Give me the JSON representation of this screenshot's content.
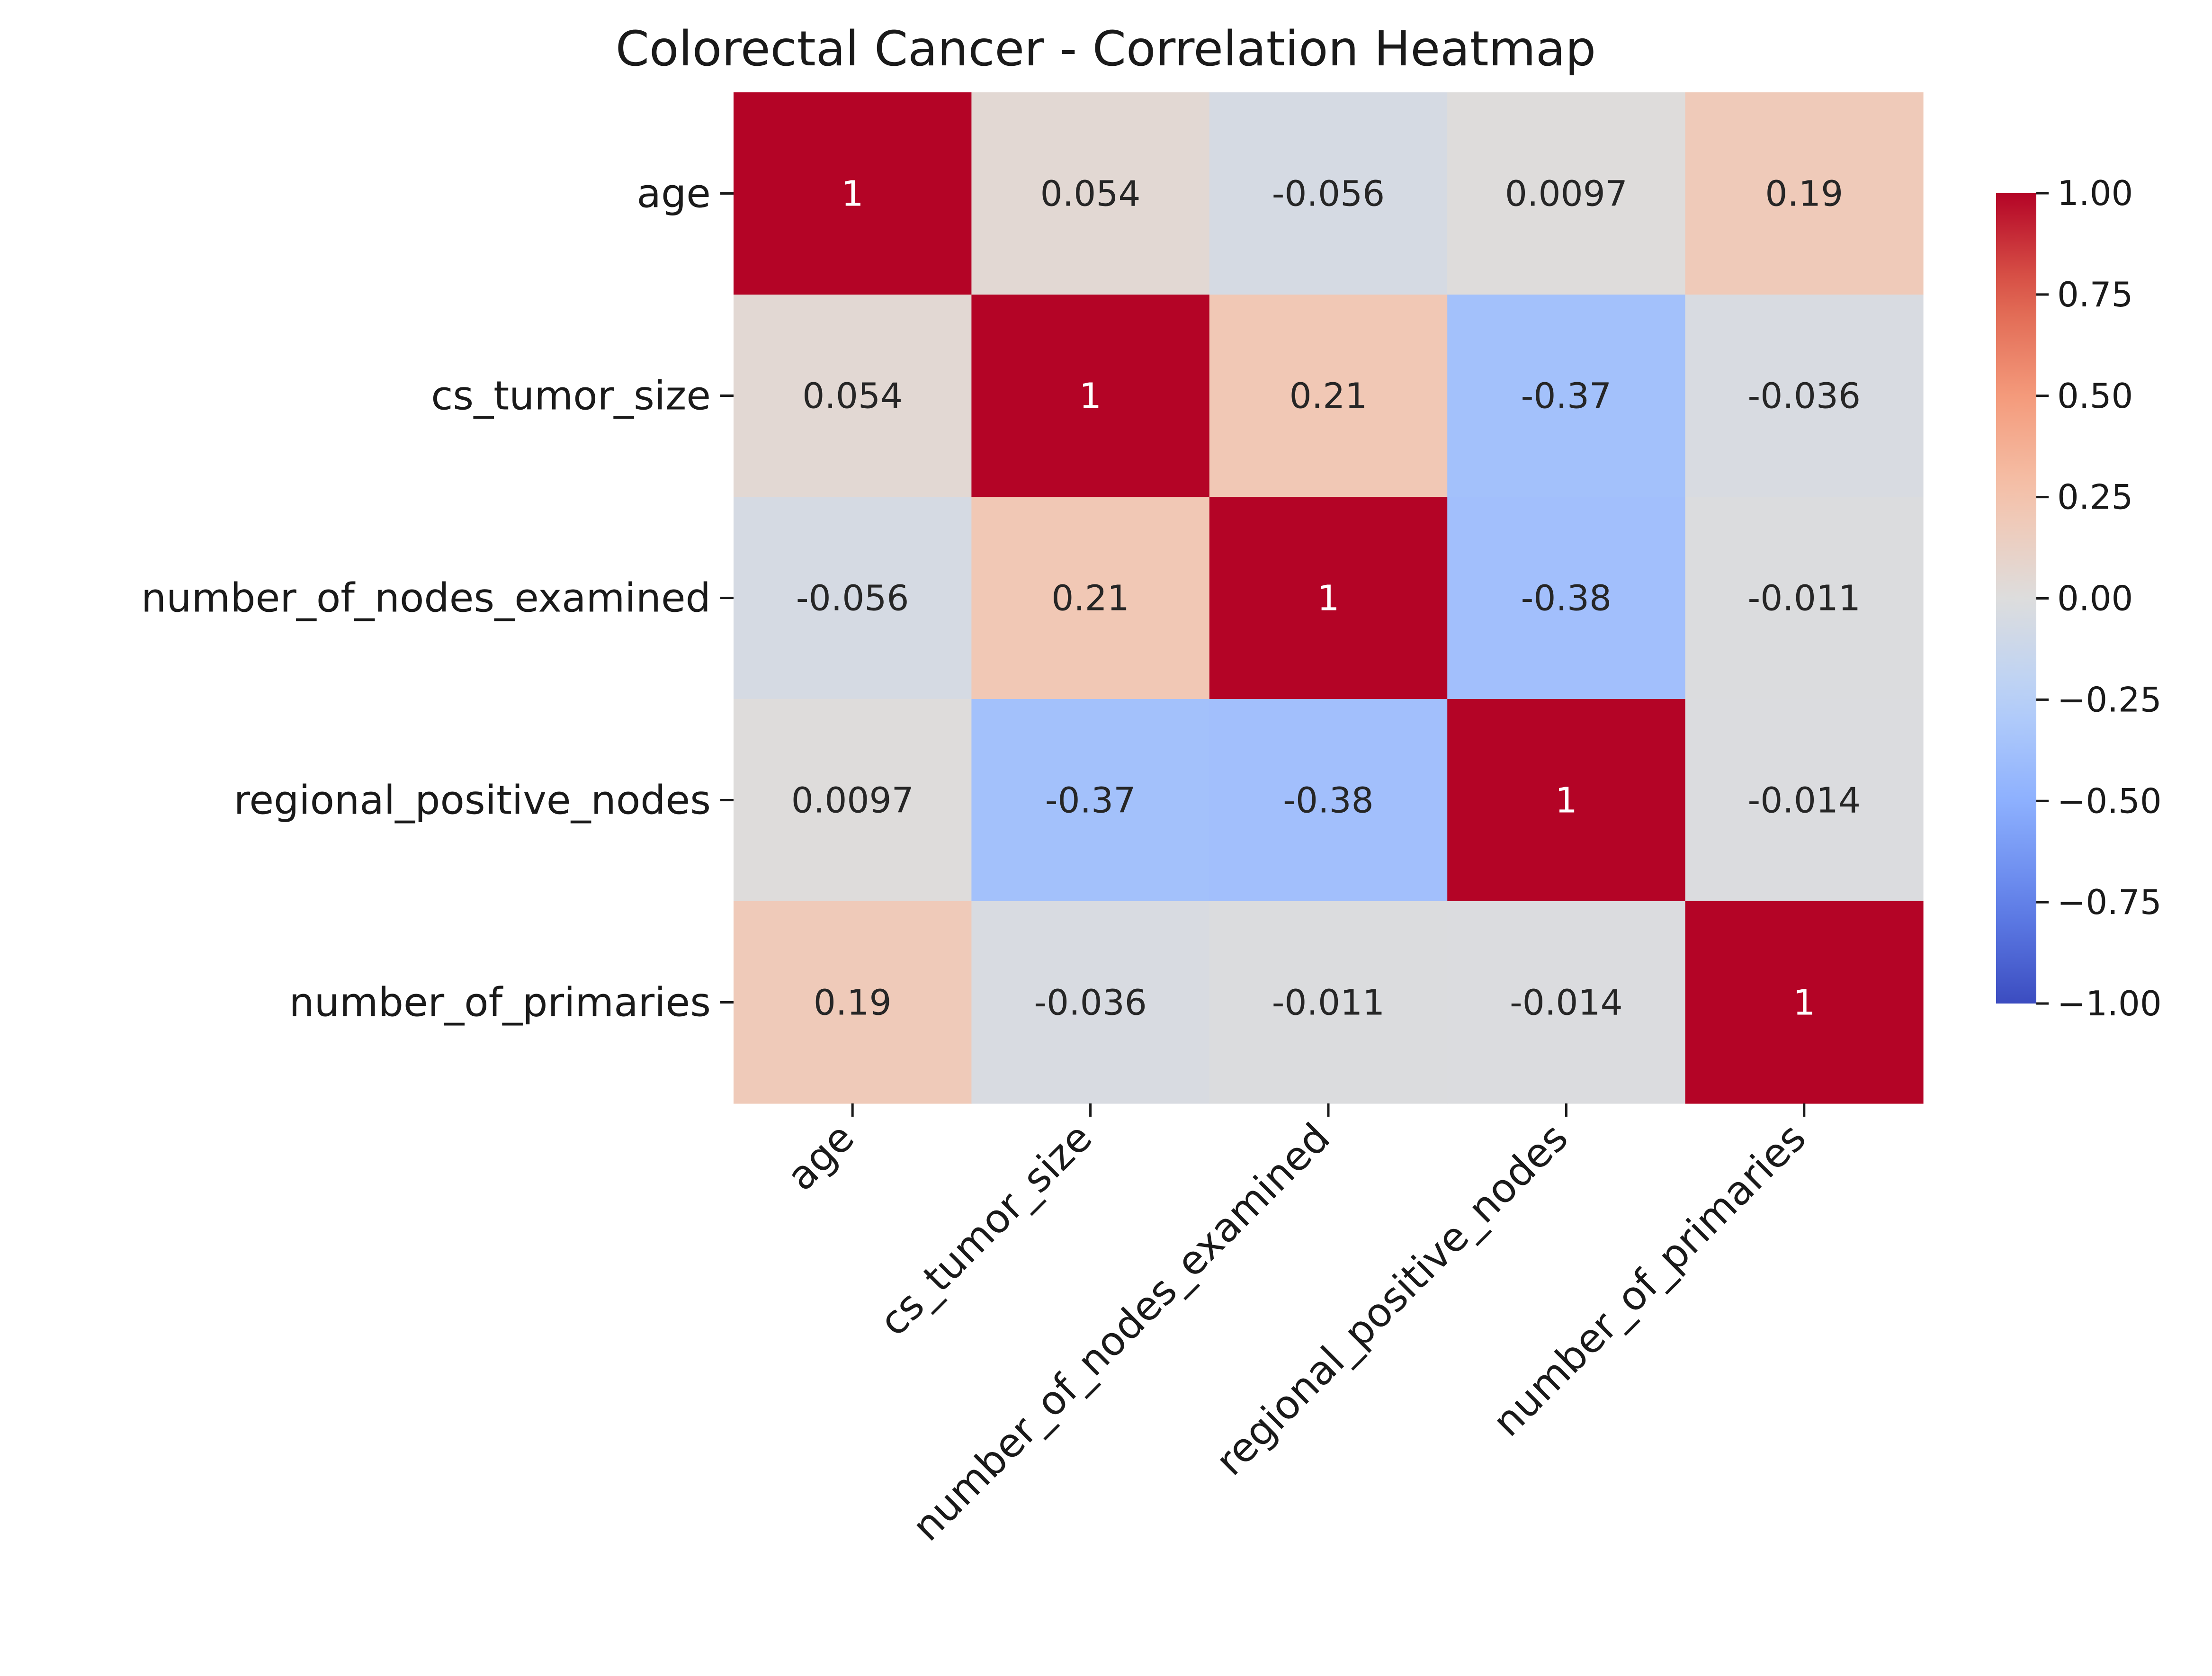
{
  "chart_data": {
    "type": "heatmap",
    "title": "Colorectal Cancer - Correlation Heatmap",
    "rows": [
      "age",
      "cs_tumor_size",
      "number_of_nodes_examined",
      "regional_positive_nodes",
      "number_of_primaries"
    ],
    "columns": [
      "age",
      "cs_tumor_size",
      "number_of_nodes_examined",
      "regional_positive_nodes",
      "number_of_primaries"
    ],
    "values": [
      [
        1,
        0.054,
        -0.056,
        0.0097,
        0.19
      ],
      [
        0.054,
        1,
        0.21,
        -0.37,
        -0.036
      ],
      [
        -0.056,
        0.21,
        1,
        -0.38,
        -0.011
      ],
      [
        0.0097,
        -0.37,
        -0.38,
        1,
        -0.014
      ],
      [
        0.19,
        -0.036,
        -0.011,
        -0.014,
        1
      ]
    ],
    "labels": [
      [
        "1",
        "0.054",
        "-0.056",
        "0.0097",
        "0.19"
      ],
      [
        "0.054",
        "1",
        "0.21",
        "-0.37",
        "-0.036"
      ],
      [
        "-0.056",
        "0.21",
        "1",
        "-0.38",
        "-0.011"
      ],
      [
        "0.0097",
        "-0.37",
        "-0.38",
        "1",
        "-0.014"
      ],
      [
        "0.19",
        "-0.036",
        "-0.011",
        "-0.014",
        "1"
      ]
    ],
    "colormap": "coolwarm",
    "vmin": -1,
    "vmax": 1,
    "colorbar_ticks": [
      1.0,
      0.75,
      0.5,
      0.25,
      0.0,
      -0.25,
      -0.5,
      -0.75,
      -1.0
    ],
    "colorbar_tick_labels": [
      "1.00",
      "0.75",
      "0.50",
      "0.25",
      "0.00",
      "−0.25",
      "−0.50",
      "−0.75",
      "−1.00"
    ]
  }
}
